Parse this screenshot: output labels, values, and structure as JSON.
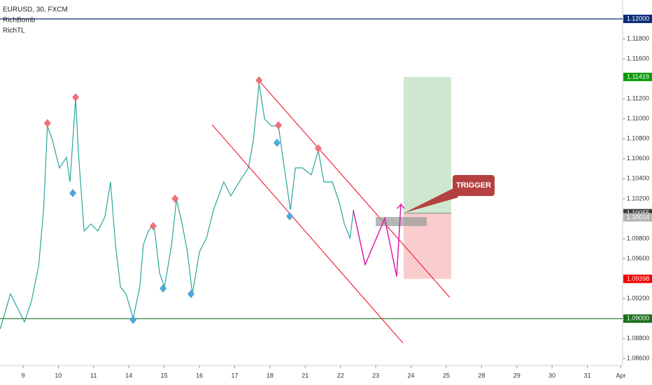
{
  "chart_data": {
    "type": "line",
    "title": "EURUSD, 30, FXCM",
    "indicators": [
      "RichBomb",
      "RichTL"
    ],
    "annotation": "TRIGGER",
    "color": "#26a69a",
    "x": [
      -0.65,
      -0.36,
      -0.16,
      0.04,
      0.24,
      0.44,
      0.58,
      0.69,
      0.83,
      1.03,
      1.23,
      1.33,
      1.49,
      1.57,
      1.73,
      1.92,
      2.12,
      2.32,
      2.48,
      2.62,
      2.76,
      2.92,
      3.12,
      3.31,
      3.41,
      3.55,
      3.71,
      3.87,
      4.01,
      4.21,
      4.35,
      4.51,
      4.66,
      4.8,
      5.0,
      5.2,
      5.4,
      5.69,
      5.89,
      6.19,
      6.39,
      6.53,
      6.69,
      6.85,
      7.04,
      7.24,
      7.38,
      7.58,
      7.72,
      7.92,
      8.17,
      8.37,
      8.53,
      8.77,
      8.97,
      9.11,
      9.27,
      9.37
    ],
    "values": [
      1.08897,
      1.09247,
      1.09107,
      1.08967,
      1.09177,
      1.09527,
      1.10088,
      1.10928,
      1.10788,
      1.10508,
      1.10613,
      1.10368,
      1.11208,
      1.10648,
      1.09877,
      1.09947,
      1.09877,
      1.10018,
      1.10368,
      1.09737,
      1.09317,
      1.09247,
      1.09002,
      1.09317,
      1.09737,
      1.09877,
      1.09947,
      1.09457,
      1.09317,
      1.09737,
      1.10193,
      1.09947,
      1.09667,
      1.09247,
      1.09667,
      1.09807,
      1.10088,
      1.10368,
      1.10228,
      1.10403,
      1.10508,
      1.10788,
      1.11349,
      1.10998,
      1.10928,
      1.10928,
      1.10578,
      1.10088,
      1.10508,
      1.10508,
      1.10438,
      1.10683,
      1.10368,
      1.10368,
      1.10158,
      1.09947,
      1.09807,
      1.10088
    ],
    "pivot_highs": {
      "color": "#f07178",
      "x": [
        0.69,
        1.49,
        3.69,
        4.31,
        6.69,
        7.24,
        8.37
      ],
      "values": [
        1.10956,
        1.11215,
        1.09926,
        1.102,
        1.11384,
        1.10935,
        1.10704
      ]
    },
    "pivot_lows": {
      "color": "#4fa8d8",
      "x": [
        1.41,
        3.12,
        3.97,
        4.76,
        7.2,
        7.56
      ],
      "values": [
        1.10256,
        1.08988,
        1.09303,
        1.09247,
        1.1076,
        1.10025
      ]
    },
    "position": {
      "x_start": 10.79,
      "x_end": 12.14,
      "target": 1.11419,
      "entry": 1.10055,
      "stop": 1.09398
    },
    "levels": [
      {
        "value": 1.12,
        "label": "1.12000",
        "color": "#0d2d7a",
        "line": true
      },
      {
        "value": 1.11419,
        "label": "1.11419",
        "color": "#0c9b0c",
        "line": false
      },
      {
        "value": 1.10055,
        "label": "1.10055",
        "color": "#3c3c3c",
        "line": false
      },
      {
        "value": 1.10014,
        "label": "1.10014",
        "color": "#b4b4b4",
        "line": false
      },
      {
        "value": 1.09398,
        "label": "1.09398",
        "color": "#f00000",
        "line": false
      },
      {
        "value": 1.09,
        "label": "1.09000",
        "color": "#1b6e1b",
        "line": true
      }
    ],
    "xlim": [
      -0.655,
      17.0
    ],
    "xticks": [
      {
        "value": 0,
        "label": "9"
      },
      {
        "value": 1,
        "label": "10"
      },
      {
        "value": 2,
        "label": "11"
      },
      {
        "value": 3,
        "label": "14"
      },
      {
        "value": 4,
        "label": "15"
      },
      {
        "value": 5,
        "label": "16"
      },
      {
        "value": 6,
        "label": "17"
      },
      {
        "value": 7,
        "label": "18"
      },
      {
        "value": 8,
        "label": "21"
      },
      {
        "value": 9,
        "label": "22"
      },
      {
        "value": 10,
        "label": "23"
      },
      {
        "value": 11,
        "label": "24"
      },
      {
        "value": 12,
        "label": "25"
      },
      {
        "value": 13,
        "label": "28"
      },
      {
        "value": 14,
        "label": "29"
      },
      {
        "value": 15,
        "label": "30"
      },
      {
        "value": 16,
        "label": "31"
      },
      {
        "value": 16.95,
        "label": "Apr"
      }
    ],
    "ylim": [
      1.08546,
      1.12189
    ],
    "yticks": [
      {
        "value": 1.118,
        "label": "1.11800"
      },
      {
        "value": 1.116,
        "label": "1.11600"
      },
      {
        "value": 1.112,
        "label": "1.11200"
      },
      {
        "value": 1.11,
        "label": "1.11000"
      },
      {
        "value": 1.108,
        "label": "1.10800"
      },
      {
        "value": 1.106,
        "label": "1.10600"
      },
      {
        "value": 1.104,
        "label": "1.10400"
      },
      {
        "value": 1.102,
        "label": "1.10200"
      },
      {
        "value": 1.098,
        "label": "1.09800"
      },
      {
        "value": 1.096,
        "label": "1.09600"
      },
      {
        "value": 1.092,
        "label": "1.09200"
      },
      {
        "value": 1.088,
        "label": "1.08800"
      },
      {
        "value": 1.086,
        "label": "1.08600"
      }
    ],
    "grid": false
  }
}
